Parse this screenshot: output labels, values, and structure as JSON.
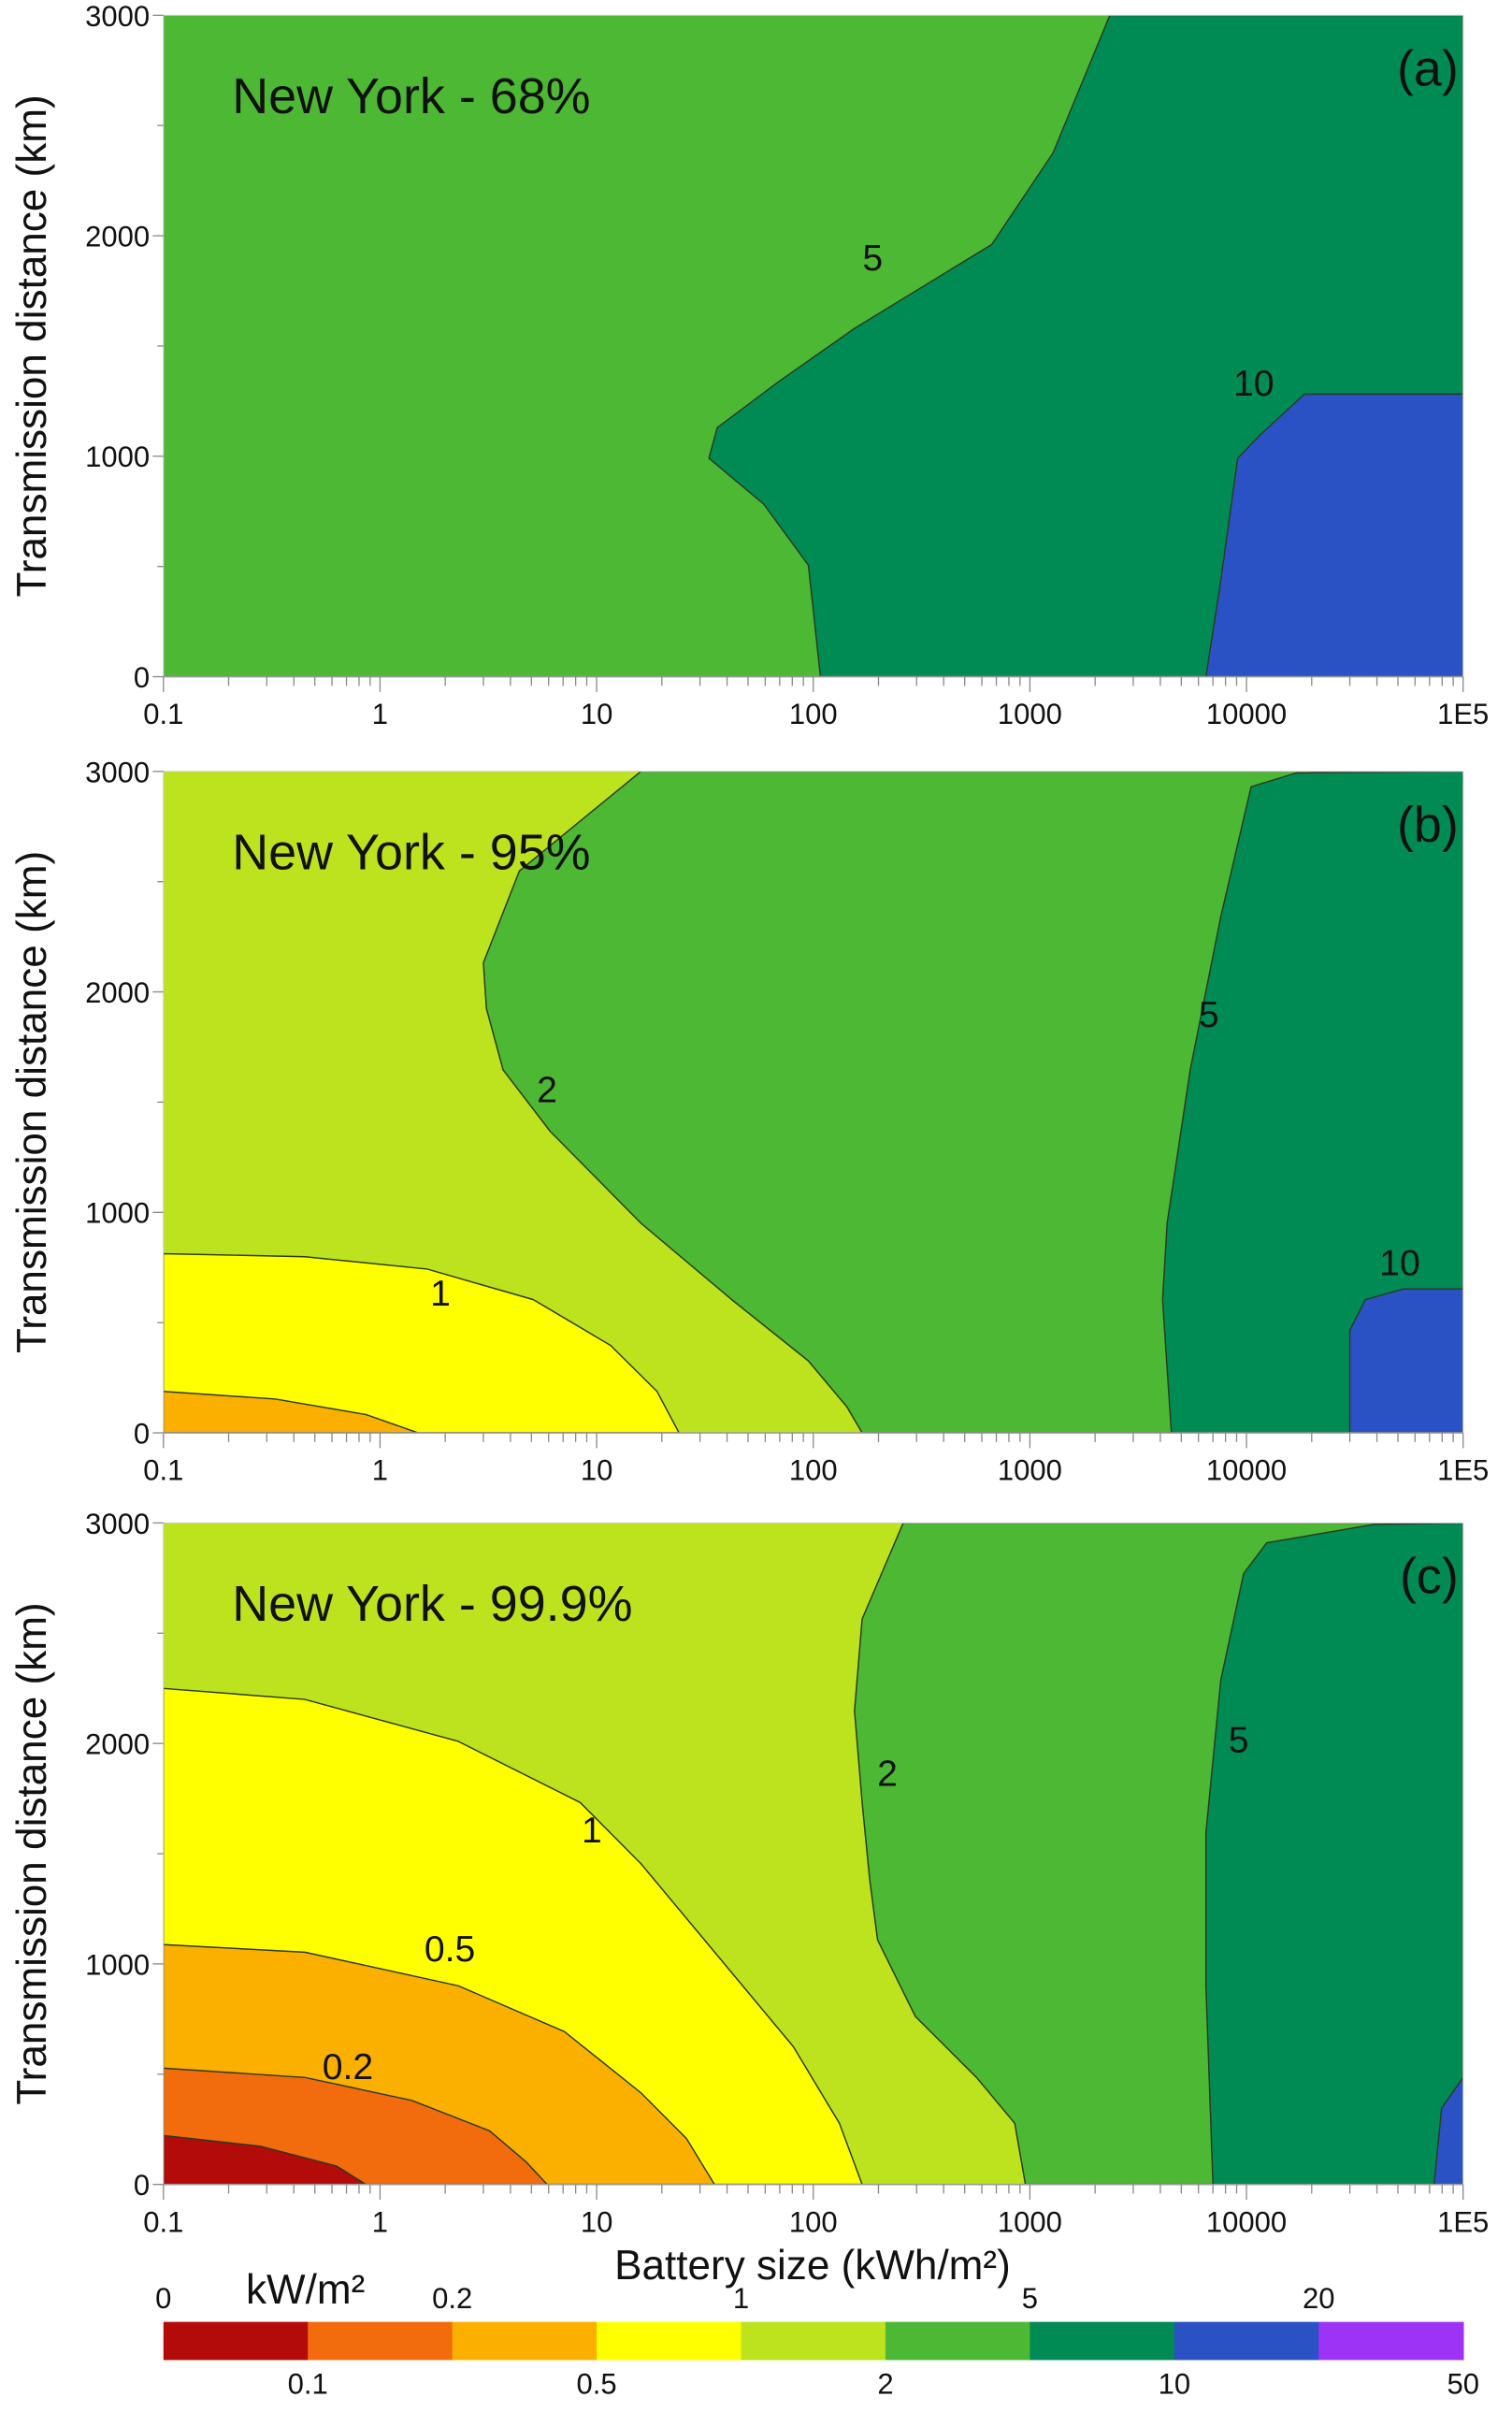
{
  "chart_data": {
    "type": "contour",
    "xlabel": "Battery size (kWh/m²)",
    "ylabel": "Transmission distance (km)",
    "xscale": "log",
    "xlim": [
      0.1,
      100000
    ],
    "ylim": [
      0,
      3000
    ],
    "xticks": [
      "0.1",
      "1",
      "10",
      "100",
      "1000",
      "10000",
      "1E5"
    ],
    "xtick_values": [
      0.1,
      1,
      10,
      100,
      1000,
      10000,
      100000
    ],
    "yticks": [
      "0",
      "1000",
      "2000",
      "3000"
    ],
    "ytick_values": [
      0,
      1000,
      2000,
      3000
    ],
    "colorbar": {
      "unit": "kW/m²",
      "boundaries": [
        0,
        0.1,
        0.2,
        0.5,
        1,
        2,
        5,
        10,
        20,
        50
      ],
      "labels_top": [
        "0",
        "0.2",
        "1",
        "5",
        "20"
      ],
      "labels_bottom": [
        "0.1",
        "0.5",
        "2",
        "10",
        "50"
      ],
      "colors": [
        "#b30a0a",
        "#f26c0d",
        "#fbb000",
        "#ffff00",
        "#bde21e",
        "#4db833",
        "#008b55",
        "#2b52c4",
        "#9d34f5"
      ]
    },
    "panels": [
      {
        "label": "(a)",
        "title": "New York - 68%",
        "background_color": "#4db833",
        "regions": [
          {
            "range": "5-10",
            "color": "#008b55",
            "polygon": [
              [
                2340,
                3000
              ],
              [
                1280,
                2376
              ],
              [
                667,
                1961
              ],
              [
                155,
                1580
              ],
              [
                69,
                1337
              ],
              [
                36,
                1129
              ],
              [
                33,
                991
              ],
              [
                59,
                783
              ],
              [
                95,
                506
              ],
              [
                108,
                0
              ],
              [
                100000,
                0
              ],
              [
                100000,
                3000
              ]
            ]
          },
          {
            "range": "10-20",
            "color": "#2b52c4",
            "polygon": [
              [
                6500,
                0
              ],
              [
                7600,
                436
              ],
              [
                9100,
                991
              ],
              [
                11500,
                1095
              ],
              [
                18500,
                1282
              ],
              [
                100000,
                1282
              ],
              [
                100000,
                0
              ]
            ]
          }
        ],
        "contour_labels": [
          {
            "text": "5",
            "x": 188,
            "y": 1905
          },
          {
            "text": "10",
            "x": 10800,
            "y": 1337
          }
        ]
      },
      {
        "label": "(b)",
        "title": "New York - 95%",
        "background_color": "#bde21e",
        "regions": [
          {
            "range": "0.5-1",
            "color": "#ffff00",
            "polygon": [
              [
                0.1,
                813
              ],
              [
                0.45,
                799
              ],
              [
                1.65,
                743
              ],
              [
                5.1,
                604
              ],
              [
                11.6,
                396
              ],
              [
                19,
                188
              ],
              [
                24,
                0
              ],
              [
                0.1,
                0
              ]
            ]
          },
          {
            "range": "0.2-0.5",
            "color": "#fbb000",
            "polygon": [
              [
                0.1,
                188
              ],
              [
                0.33,
                153
              ],
              [
                0.86,
                83
              ],
              [
                1.5,
                0
              ],
              [
                0.1,
                0
              ]
            ]
          },
          {
            "range": "2-5",
            "color": "#4db833",
            "polygon": [
              [
                16,
                3000
              ],
              [
                4.4,
                2549
              ],
              [
                3.0,
                2132
              ],
              [
                3.1,
                1924
              ],
              [
                3.7,
                1646
              ],
              [
                6.1,
                1368
              ],
              [
                16,
                951
              ],
              [
                42,
                604
              ],
              [
                95,
                326
              ],
              [
                143,
                118
              ],
              [
                168,
                0
              ],
              [
                100000,
                0
              ],
              [
                100000,
                3000
              ]
            ]
          },
          {
            "range": "5-10",
            "color": "#008b55",
            "polygon": [
              [
                100000,
                3000
              ],
              [
                17000,
                2993
              ],
              [
                10500,
                2931
              ],
              [
                7600,
                2340
              ],
              [
                5500,
                1646
              ],
              [
                4300,
                951
              ],
              [
                4100,
                604
              ],
              [
                4500,
                0
              ],
              [
                100000,
                0
              ]
            ]
          },
          {
            "range": "10-20",
            "color": "#2b52c4",
            "polygon": [
              [
                30000,
                0
              ],
              [
                30000,
                465
              ],
              [
                35400,
                604
              ],
              [
                53000,
                653
              ],
              [
                100000,
                653
              ],
              [
                100000,
                0
              ]
            ]
          }
        ],
        "contour_labels": [
          {
            "text": "2",
            "x": 5.9,
            "y": 1563
          },
          {
            "text": "1",
            "x": 1.9,
            "y": 639
          },
          {
            "text": "5",
            "x": 6700,
            "y": 1903
          },
          {
            "text": "10",
            "x": 51000,
            "y": 778
          }
        ]
      },
      {
        "label": "(c)",
        "title": "New York - 99.9%",
        "background_color": "#bde21e",
        "regions": [
          {
            "range": "0.5-1",
            "color": "#ffff00",
            "polygon": [
              [
                0.1,
                2250
              ],
              [
                0.45,
                2200
              ],
              [
                2.3,
                2009
              ],
              [
                8.4,
                1732
              ],
              [
                16,
                1455
              ],
              [
                36,
                1039
              ],
              [
                81,
                624
              ],
              [
                132,
                277
              ],
              [
                168,
                0
              ],
              [
                0.1,
                0
              ]
            ]
          },
          {
            "range": "0.2-0.5",
            "color": "#fbb000",
            "polygon": [
              [
                0.1,
                1088
              ],
              [
                0.45,
                1053
              ],
              [
                2.3,
                901
              ],
              [
                7.1,
                693
              ],
              [
                16,
                416
              ],
              [
                26,
                208
              ],
              [
                35,
                0
              ],
              [
                0.1,
                0
              ]
            ]
          },
          {
            "range": "0.1-0.2",
            "color": "#f26c0d",
            "polygon": [
              [
                0.1,
                527
              ],
              [
                0.45,
                485
              ],
              [
                1.4,
                381
              ],
              [
                3.2,
                243
              ],
              [
                4.7,
                104
              ],
              [
                5.9,
                0
              ],
              [
                0.1,
                0
              ]
            ]
          },
          {
            "range": "0-0.1",
            "color": "#b30a0a",
            "polygon": [
              [
                0.1,
                222
              ],
              [
                0.28,
                173
              ],
              [
                0.63,
                83
              ],
              [
                0.86,
                0
              ],
              [
                0.1,
                0
              ]
            ]
          },
          {
            "range": "2-5",
            "color": "#4db833",
            "polygon": [
              [
                260,
                3000
              ],
              [
                168,
                2564
              ],
              [
                155,
                2148
              ],
              [
                168,
                1732
              ],
              [
                182,
                1386
              ],
              [
                198,
                1109
              ],
              [
                296,
                762
              ],
              [
                567,
                485
              ],
              [
                851,
                277
              ],
              [
                953,
                0
              ],
              [
                100000,
                0
              ],
              [
                100000,
                3000
              ]
            ]
          },
          {
            "range": "5-10",
            "color": "#008b55",
            "polygon": [
              [
                100000,
                3000
              ],
              [
                38500,
                2993
              ],
              [
                12400,
                2910
              ],
              [
                9700,
                2771
              ],
              [
                7600,
                2286
              ],
              [
                6500,
                1594
              ],
              [
                6500,
                901
              ],
              [
                7000,
                0
              ],
              [
                100000,
                0
              ]
            ]
          },
          {
            "range": "10-20",
            "color": "#2b52c4",
            "polygon": [
              [
                73500,
                0
              ],
              [
                79600,
                346
              ],
              [
                100000,
                485
              ],
              [
                100000,
                0
              ]
            ]
          }
        ],
        "contour_labels": [
          {
            "text": "2",
            "x": 220,
            "y": 1871
          },
          {
            "text": "1",
            "x": 9.5,
            "y": 1614
          },
          {
            "text": "0.5",
            "x": 2.1,
            "y": 1074
          },
          {
            "text": "0.2",
            "x": 0.71,
            "y": 540
          },
          {
            "text": "5",
            "x": 9200,
            "y": 2023
          }
        ]
      }
    ]
  }
}
